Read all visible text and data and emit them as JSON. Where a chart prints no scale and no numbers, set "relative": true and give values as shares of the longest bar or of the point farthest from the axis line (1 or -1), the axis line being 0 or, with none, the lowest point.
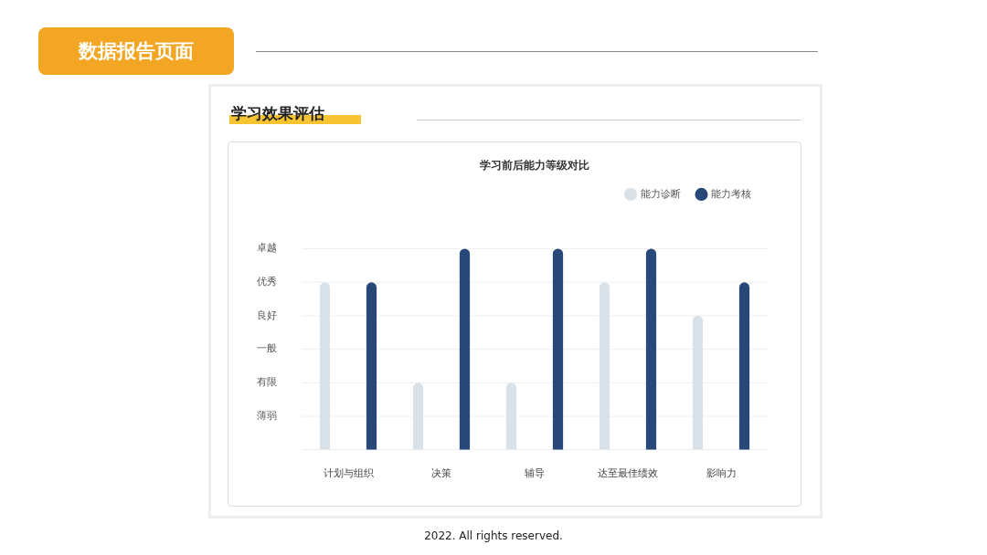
{
  "chart_data": {
    "type": "bar",
    "title": "学习前后能力等级对比",
    "relative": true,
    "annotations": [
      "数据报告页面",
      "学习效果评估",
      "2022. All rights reserved.",
      "卓越",
      "优秀",
      "良好",
      "一般",
      "有限",
      "薄弱"
    ],
    "categories": [
      "计划与组织",
      "决策",
      "辅导",
      "达至最佳绩效",
      "影响力"
    ],
    "series": [
      {
        "name": "能力诊断",
        "color": "#d9e1e9",
        "values": [
          0.833,
          0.333,
          0.333,
          0.833,
          0.667
        ]
      },
      {
        "name": "能力考核",
        "color": "#274878",
        "values": [
          0.833,
          1,
          1,
          1,
          0.833
        ]
      }
    ],
    "grid": "y",
    "legend": "top right"
  }
}
